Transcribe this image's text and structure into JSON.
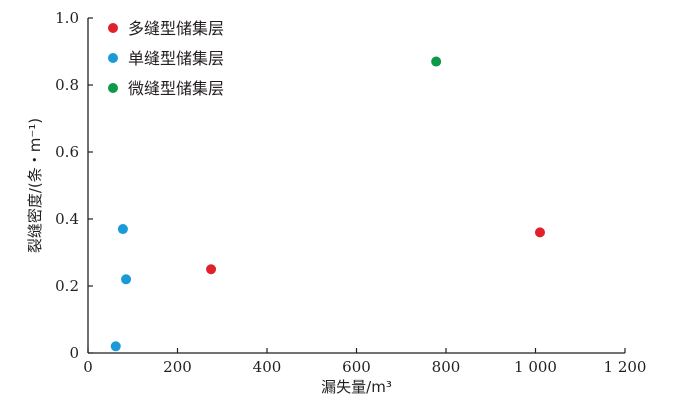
{
  "chart_data": {
    "type": "scatter",
    "xlabel": "漏失量/m³",
    "ylabel": "裂缝密度/(条・m⁻¹)",
    "xlim": [
      0,
      1200
    ],
    "ylim": [
      0,
      1.0
    ],
    "xticks": [
      0,
      200,
      400,
      600,
      800,
      1000,
      1200
    ],
    "xtick_labels": [
      "0",
      "200",
      "400",
      "600",
      "800",
      "1 000",
      "1 200"
    ],
    "yticks": [
      0,
      0.2,
      0.4,
      0.6,
      0.8,
      1.0
    ],
    "ytick_labels": [
      "0",
      "0.2",
      "0.4",
      "0.6",
      "0.8",
      "1.0"
    ],
    "grid": false,
    "legend_position": "top-left",
    "series": [
      {
        "name": "多缝型储集层",
        "color": "#e0202b",
        "points": [
          {
            "x": 275,
            "y": 0.25
          },
          {
            "x": 1010,
            "y": 0.36
          }
        ]
      },
      {
        "name": "单缝型储集层",
        "color": "#1a9ad6",
        "points": [
          {
            "x": 62,
            "y": 0.02
          },
          {
            "x": 78,
            "y": 0.37
          },
          {
            "x": 85,
            "y": 0.22
          }
        ]
      },
      {
        "name": "微缝型储集层",
        "color": "#0a9a48",
        "points": [
          {
            "x": 778,
            "y": 0.87
          }
        ]
      }
    ]
  }
}
